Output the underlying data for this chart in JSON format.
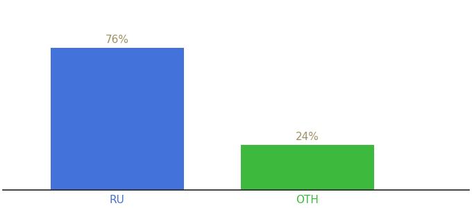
{
  "categories": [
    "RU",
    "OTH"
  ],
  "values": [
    76,
    24
  ],
  "bar_colors": [
    "#4472db",
    "#3dba3d"
  ],
  "label_texts": [
    "76%",
    "24%"
  ],
  "label_color": "#a09060",
  "xtick_colors": [
    "#4472db",
    "#3dba3d"
  ],
  "ylim": [
    0,
    100
  ],
  "background_color": "#ffffff",
  "x_positions": [
    1,
    2
  ],
  "bar_width": 0.7,
  "xlim": [
    0.4,
    2.85
  ],
  "label_fontsize": 11,
  "tick_fontsize": 11
}
